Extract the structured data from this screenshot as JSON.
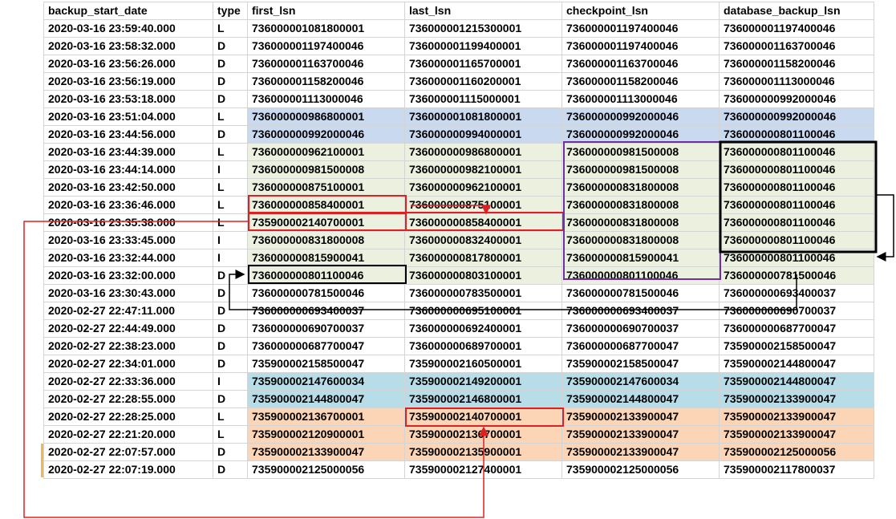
{
  "table": {
    "headers": [
      "backup_start_date",
      "type",
      "first_lsn",
      "last_lsn",
      "checkpoint_lsn",
      "database_backup_lsn"
    ],
    "rows": [
      {
        "date": "2020-03-16 23:59:40.000",
        "type": "L",
        "first_lsn": "736000001081800001",
        "last_lsn": "736000001215300001",
        "checkpoint_lsn": "736000001197400046",
        "database_backup_lsn": "736000001197400046",
        "fill": ""
      },
      {
        "date": "2020-03-16 23:58:32.000",
        "type": "D",
        "first_lsn": "736000001197400046",
        "last_lsn": "736000001199400001",
        "checkpoint_lsn": "736000001197400046",
        "database_backup_lsn": "736000001163700046",
        "fill": ""
      },
      {
        "date": "2020-03-16 23:56:26.000",
        "type": "D",
        "first_lsn": "736000001163700046",
        "last_lsn": "736000001165700001",
        "checkpoint_lsn": "736000001163700046",
        "database_backup_lsn": "736000001158200046",
        "fill": ""
      },
      {
        "date": "2020-03-16 23:56:19.000",
        "type": "D",
        "first_lsn": "736000001158200046",
        "last_lsn": "736000001160200001",
        "checkpoint_lsn": "736000001158200046",
        "database_backup_lsn": "736000001113000046",
        "fill": ""
      },
      {
        "date": "2020-03-16 23:53:18.000",
        "type": "D",
        "first_lsn": "736000001113000046",
        "last_lsn": "736000001115000001",
        "checkpoint_lsn": "736000001113000046",
        "database_backup_lsn": "736000000992000046",
        "fill": ""
      },
      {
        "date": "2020-03-16 23:51:04.000",
        "type": "L",
        "first_lsn": "736000000986800001",
        "last_lsn": "736000001081800001",
        "checkpoint_lsn": "736000000992000046",
        "database_backup_lsn": "736000000992000046",
        "fill": "blue"
      },
      {
        "date": "2020-03-16 23:44:56.000",
        "type": "D",
        "first_lsn": "736000000992000046",
        "last_lsn": "736000000994000001",
        "checkpoint_lsn": "736000000992000046",
        "database_backup_lsn": "736000000801100046",
        "fill": "blue"
      },
      {
        "date": "2020-03-16 23:44:39.000",
        "type": "L",
        "first_lsn": "736000000962100001",
        "last_lsn": "736000000986800001",
        "checkpoint_lsn": "736000000981500008",
        "database_backup_lsn": "736000000801100046",
        "fill": "green"
      },
      {
        "date": "2020-03-16 23:44:14.000",
        "type": "I",
        "first_lsn": "736000000981500008",
        "last_lsn": "736000000982100001",
        "checkpoint_lsn": "736000000981500008",
        "database_backup_lsn": "736000000801100046",
        "fill": "green"
      },
      {
        "date": "2020-03-16 23:42:50.000",
        "type": "L",
        "first_lsn": "736000000875100001",
        "last_lsn": "736000000962100001",
        "checkpoint_lsn": "736000000831800008",
        "database_backup_lsn": "736000000801100046",
        "fill": "green"
      },
      {
        "date": "2020-03-16 23:36:46.000",
        "type": "L",
        "first_lsn": "736000000858400001",
        "last_lsn": "736000000875100001",
        "checkpoint_lsn": "736000000831800008",
        "database_backup_lsn": "736000000801100046",
        "fill": "green"
      },
      {
        "date": "2020-03-16 23:35:38.000",
        "type": "L",
        "first_lsn": "735900002140700001",
        "last_lsn": "736000000858400001",
        "checkpoint_lsn": "736000000831800008",
        "database_backup_lsn": "736000000801100046",
        "fill": "green"
      },
      {
        "date": "2020-03-16 23:33:45.000",
        "type": "I",
        "first_lsn": "736000000831800008",
        "last_lsn": "736000000832400001",
        "checkpoint_lsn": "736000000831800008",
        "database_backup_lsn": "736000000801100046",
        "fill": "green"
      },
      {
        "date": "2020-03-16 23:32:44.000",
        "type": "I",
        "first_lsn": "736000000815900041",
        "last_lsn": "736000000817800001",
        "checkpoint_lsn": "736000000815900041",
        "database_backup_lsn": "736000000801100046",
        "fill": "green"
      },
      {
        "date": "2020-03-16 23:32:00.000",
        "type": "D",
        "first_lsn": "736000000801100046",
        "last_lsn": "736000000803100001",
        "checkpoint_lsn": "736000000801100046",
        "database_backup_lsn": "736000000781500046",
        "fill": "green"
      },
      {
        "date": "2020-03-16 23:30:43.000",
        "type": "D",
        "first_lsn": "736000000781500046",
        "last_lsn": "736000000783500001",
        "checkpoint_lsn": "736000000781500046",
        "database_backup_lsn": "736000000693400037",
        "fill": ""
      },
      {
        "date": "2020-02-27 22:47:11.000",
        "type": "D",
        "first_lsn": "736000000693400037",
        "last_lsn": "736000000695100001",
        "checkpoint_lsn": "736000000693400037",
        "database_backup_lsn": "736000000690700037",
        "fill": ""
      },
      {
        "date": "2020-02-27 22:44:49.000",
        "type": "D",
        "first_lsn": "736000000690700037",
        "last_lsn": "736000000692400001",
        "checkpoint_lsn": "736000000690700037",
        "database_backup_lsn": "736000000687700047",
        "fill": ""
      },
      {
        "date": "2020-02-27 22:38:23.000",
        "type": "D",
        "first_lsn": "736000000687700047",
        "last_lsn": "736000000689700001",
        "checkpoint_lsn": "736000000687700047",
        "database_backup_lsn": "735900002158500047",
        "fill": ""
      },
      {
        "date": "2020-02-27 22:34:01.000",
        "type": "D",
        "first_lsn": "735900002158500047",
        "last_lsn": "735900002160500001",
        "checkpoint_lsn": "735900002158500047",
        "database_backup_lsn": "735900002144800047",
        "fill": ""
      },
      {
        "date": "2020-02-27 22:33:36.000",
        "type": "I",
        "first_lsn": "735900002147600034",
        "last_lsn": "735900002149200001",
        "checkpoint_lsn": "735900002147600034",
        "database_backup_lsn": "735900002144800047",
        "fill": "teal"
      },
      {
        "date": "2020-02-27 22:28:55.000",
        "type": "D",
        "first_lsn": "735900002144800047",
        "last_lsn": "735900002146800001",
        "checkpoint_lsn": "735900002144800047",
        "database_backup_lsn": "735900002133900047",
        "fill": "teal"
      },
      {
        "date": "2020-02-27 22:28:25.000",
        "type": "L",
        "first_lsn": "735900002136700001",
        "last_lsn": "735900002140700001",
        "checkpoint_lsn": "735900002133900047",
        "database_backup_lsn": "735900002133900047",
        "fill": "orange"
      },
      {
        "date": "2020-02-27 22:21:20.000",
        "type": "L",
        "first_lsn": "735900002120900001",
        "last_lsn": "735900002136700001",
        "checkpoint_lsn": "735900002133900047",
        "database_backup_lsn": "735900002133900047",
        "fill": "orange"
      },
      {
        "date": "2020-02-27 22:07:57.000",
        "type": "D",
        "first_lsn": "735900002133900047",
        "last_lsn": "735900002135900001",
        "checkpoint_lsn": "735900002133900047",
        "database_backup_lsn": "735900002125000056",
        "fill": "orange"
      },
      {
        "date": "2020-02-27 22:07:19.000",
        "type": "D",
        "first_lsn": "735900002125000056",
        "last_lsn": "735900002127400001",
        "checkpoint_lsn": "735900002125000056",
        "database_backup_lsn": "735900002117800037",
        "fill": ""
      }
    ]
  },
  "colors": {
    "fill_blue": "#c9d9ef",
    "fill_green": "#ebf1de",
    "fill_teal": "#b7dde8",
    "fill_orange": "#fbd5b5",
    "annotation_red": "#e02020",
    "annotation_purple": "#7030a0",
    "annotation_black": "#000000",
    "marker_yellow": "#f2b84b"
  }
}
